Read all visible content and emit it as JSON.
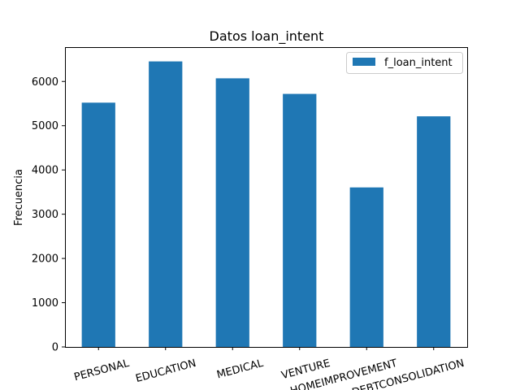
{
  "chart_data": {
    "type": "bar",
    "title": "Datos loan_intent",
    "xlabel": "",
    "ylabel": "Frecuencia",
    "categories": [
      "PERSONAL",
      "EDUCATION",
      "MEDICAL",
      "VENTURE",
      "HOMEIMPROVEMENT",
      "DEBTCONSOLIDATION"
    ],
    "series": [
      {
        "name": "f_loan_intent",
        "values": [
          5521,
          6453,
          6071,
          5719,
          3605,
          5212
        ],
        "color": "#1f77b4"
      }
    ],
    "ylim": [
      0,
      6776
    ],
    "yticks": [
      0,
      1000,
      2000,
      3000,
      4000,
      5000,
      6000
    ],
    "xtick_rotation_deg": 15,
    "grid": false,
    "legend_position": "top-right"
  }
}
